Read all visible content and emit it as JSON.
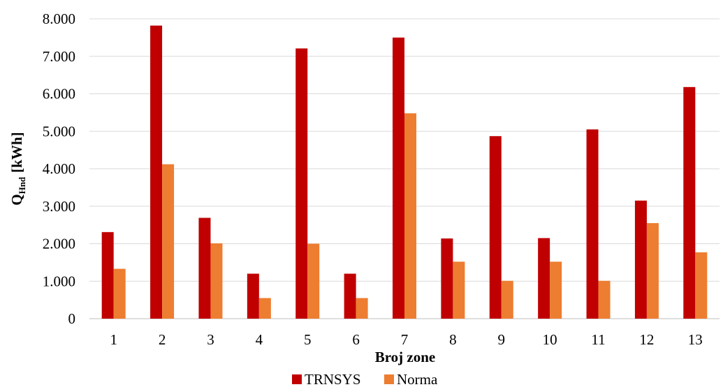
{
  "chart_data": {
    "type": "bar",
    "xlabel": "Broj zone",
    "ylabel_main": "Q",
    "ylabel_sub": "Hnd",
    "ylabel_unit": "[kWh]",
    "categories": [
      "1",
      "2",
      "3",
      "4",
      "5",
      "6",
      "7",
      "8",
      "9",
      "10",
      "11",
      "12",
      "13"
    ],
    "ylim": [
      0,
      8000
    ],
    "yticks": [
      {
        "value": 0,
        "label": "0"
      },
      {
        "value": 1000,
        "label": "1.000"
      },
      {
        "value": 2000,
        "label": "2.000"
      },
      {
        "value": 3000,
        "label": "3.000"
      },
      {
        "value": 4000,
        "label": "4.000"
      },
      {
        "value": 5000,
        "label": "5.000"
      },
      {
        "value": 6000,
        "label": "6.000"
      },
      {
        "value": 7000,
        "label": "7.000"
      },
      {
        "value": 8000,
        "label": "8.000"
      }
    ],
    "grid": true,
    "legend_position": "bottom",
    "series": [
      {
        "name": "TRNSYS",
        "color": "#c00000",
        "values": [
          2310,
          7820,
          2690,
          1200,
          7210,
          1200,
          7500,
          2140,
          4870,
          2150,
          5050,
          3150,
          6180
        ]
      },
      {
        "name": "Norma",
        "color": "#ed7d31",
        "values": [
          1330,
          4120,
          2010,
          550,
          2000,
          550,
          5480,
          1520,
          1010,
          1520,
          1010,
          2550,
          1770
        ]
      }
    ]
  }
}
